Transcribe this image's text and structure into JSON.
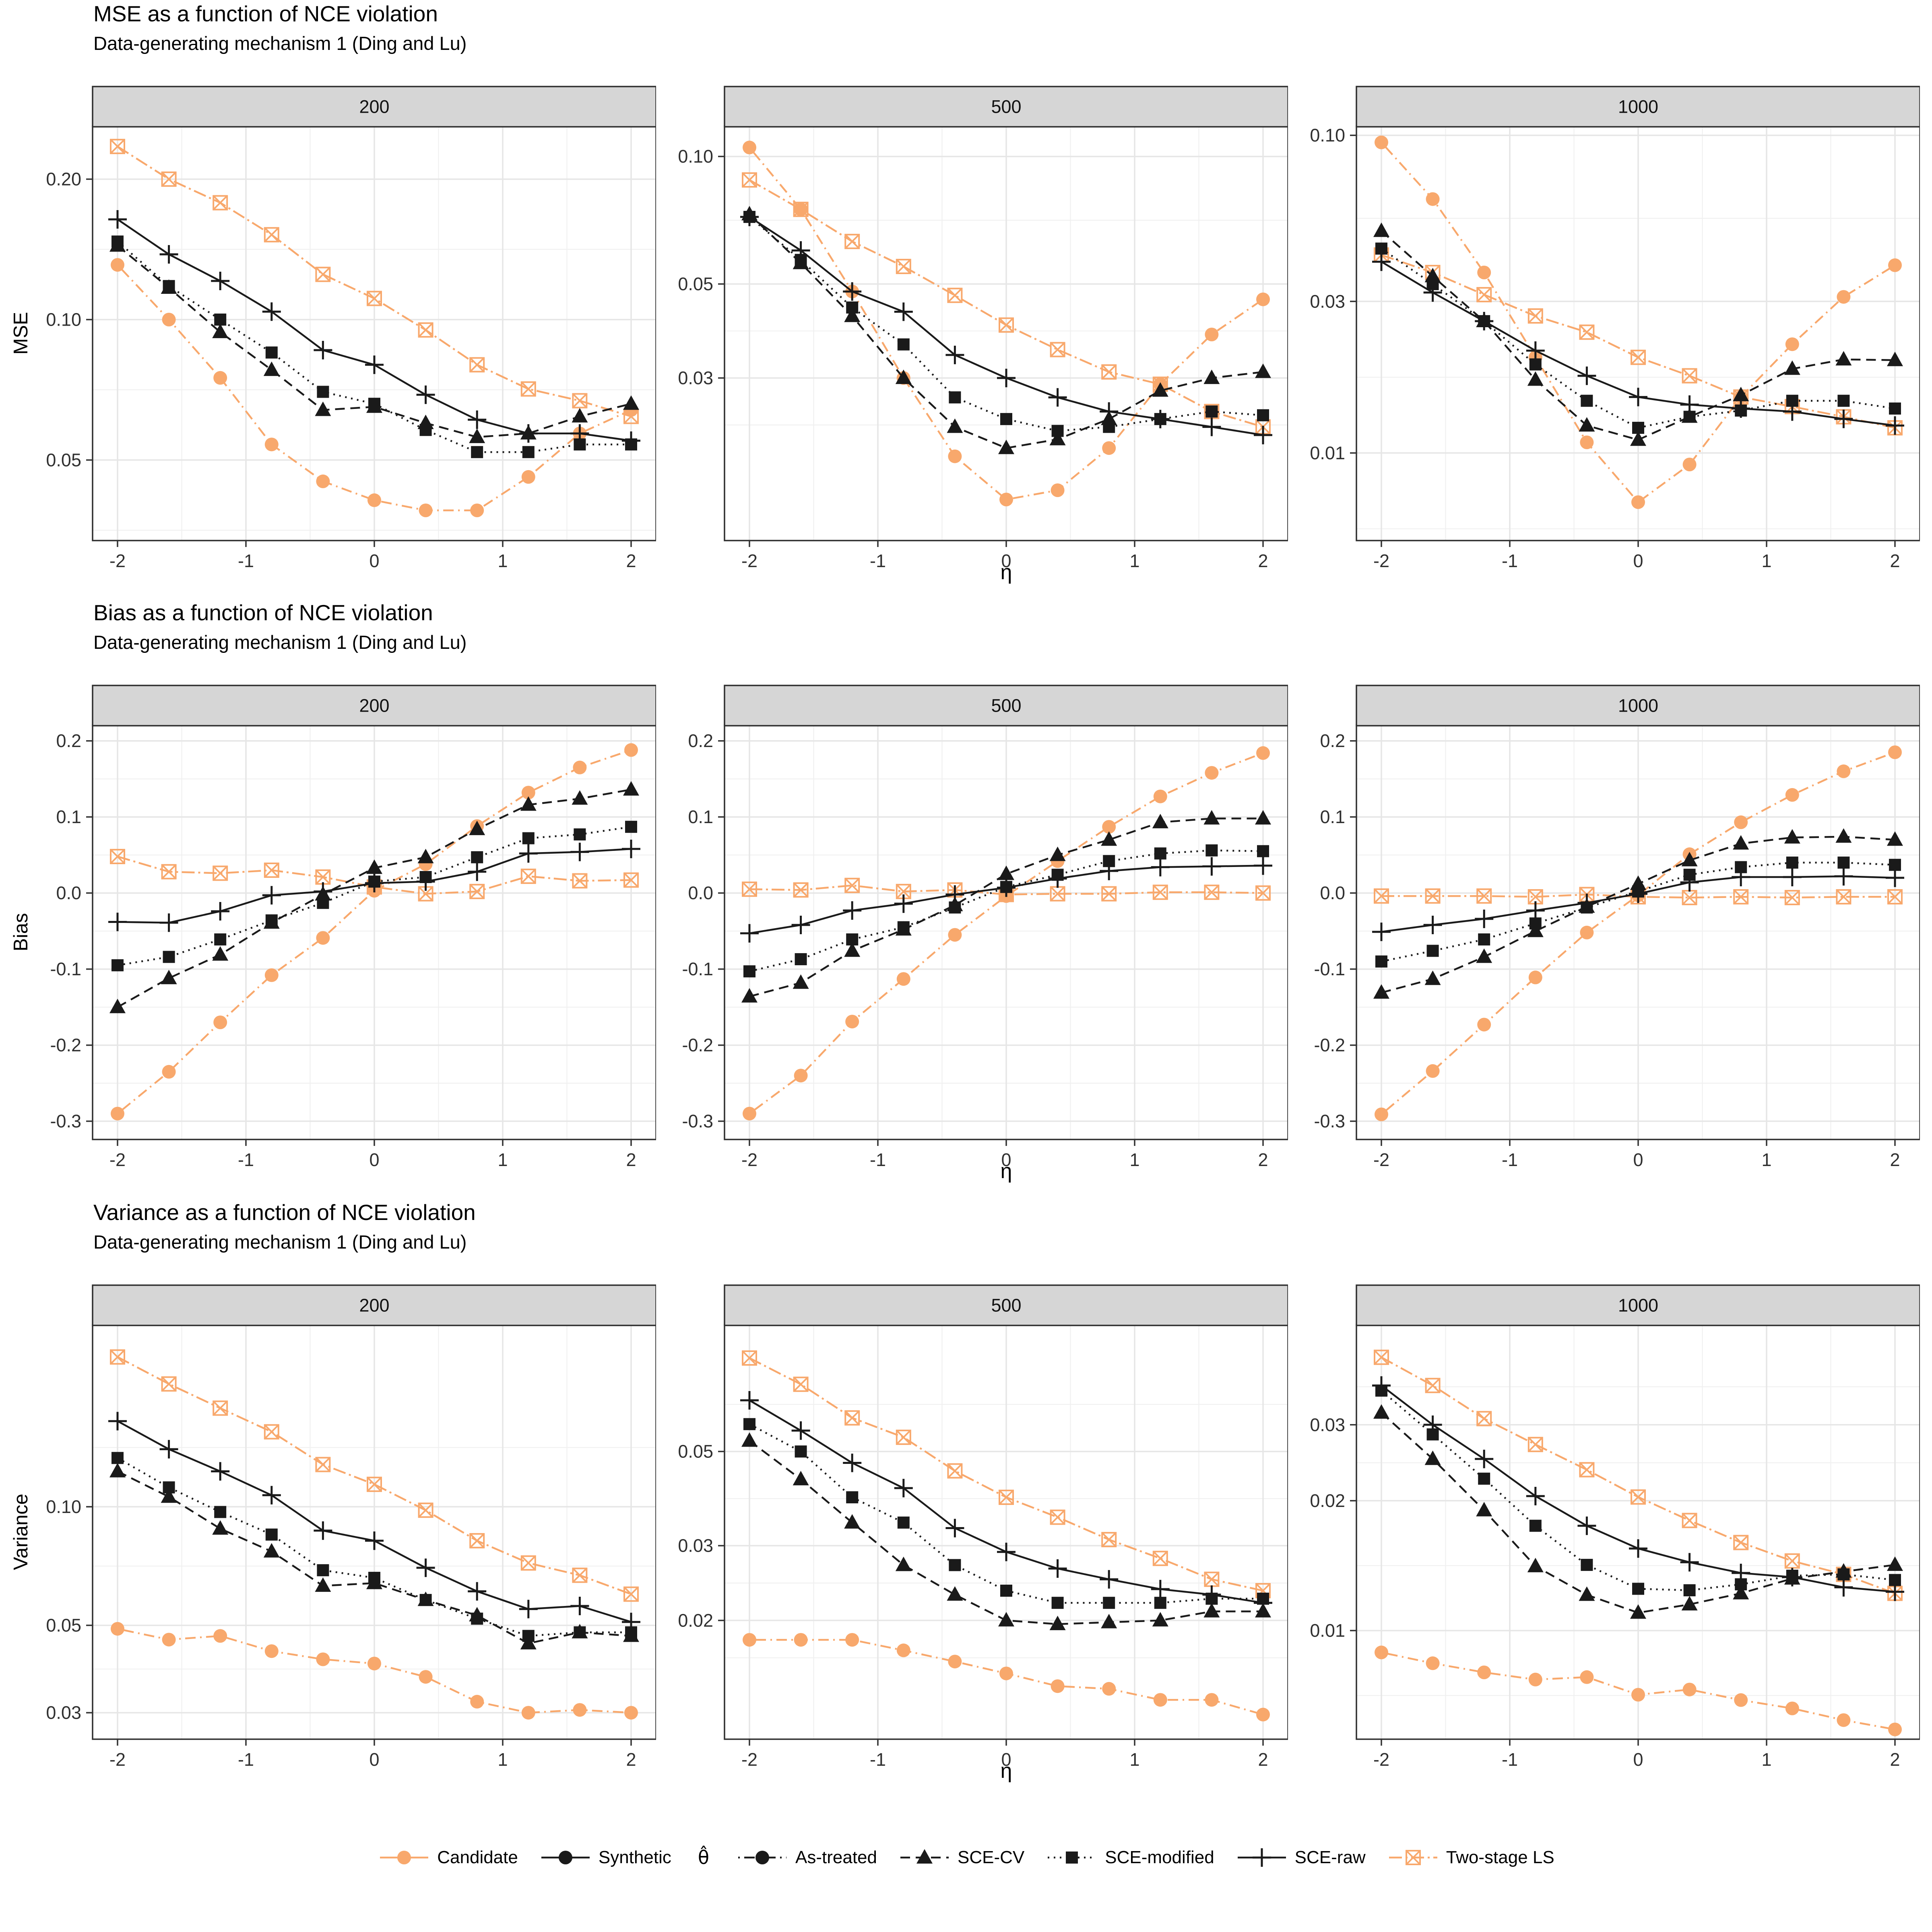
{
  "palette": {
    "orange": "#F8A86C",
    "black": "#1A1A1A",
    "grid_major": "#E6E6E6",
    "grid_minor": "#F0F0F0",
    "strip": "#D6D6D6",
    "border": "#2F2F2F",
    "tick": "#333333",
    "text": "#303030"
  },
  "x_values": [
    -2,
    -1.6,
    -1.2,
    -0.8,
    -0.4,
    0,
    0.4,
    0.8,
    1.2,
    1.6,
    2
  ],
  "x_major_ticks": [
    -2,
    -1,
    0,
    1,
    2
  ],
  "x_ticks": [
    "-2",
    "-1",
    "0",
    "1",
    "2"
  ],
  "x_minor_ticks": [
    -1.5,
    -0.5,
    0.5,
    1.5
  ],
  "panel_series_order": [
    "two_stage",
    "candidate",
    "sce_raw",
    "sce_cv",
    "sce_mod"
  ],
  "series_defs": [
    {
      "id": "candidate",
      "label": "Candidate",
      "color": "orange",
      "marker": "circle",
      "line": "dotdash"
    },
    {
      "id": "synthetic",
      "label": "Synthetic",
      "color": "black",
      "marker": "circle",
      "line": "solid"
    },
    {
      "id": "as_treated",
      "label": "As-treated",
      "color": "black",
      "marker": "circle",
      "line": "dotdash"
    },
    {
      "id": "sce_cv",
      "label": "SCE-CV",
      "color": "black",
      "marker": "triangle",
      "line": "dashed"
    },
    {
      "id": "sce_mod",
      "label": "SCE-modified",
      "color": "black",
      "marker": "square",
      "line": "dotted"
    },
    {
      "id": "sce_raw",
      "label": "SCE-raw",
      "color": "black",
      "marker": "plus",
      "line": "solid"
    },
    {
      "id": "two_stage",
      "label": "Two-stage LS",
      "color": "orange",
      "marker": "square_x",
      "line": "twodash"
    }
  ],
  "legend": {
    "title": "θ̂",
    "items": [
      {
        "id": "candidate",
        "label": "Candidate",
        "color": "orange",
        "marker": "circle",
        "line": "solid"
      },
      {
        "id": "synthetic",
        "label": "Synthetic",
        "color": "black",
        "marker": "circle",
        "line": "solid"
      },
      {
        "id": "theta",
        "type": "title"
      },
      {
        "id": "as_treated",
        "label": "As-treated",
        "color": "black",
        "marker": "circle",
        "line": "dotdash"
      },
      {
        "id": "sce_cv",
        "label": "SCE-CV",
        "color": "black",
        "marker": "triangle",
        "line": "dashed"
      },
      {
        "id": "sce_mod",
        "label": "SCE-modified",
        "color": "black",
        "marker": "square",
        "line": "dotted"
      },
      {
        "id": "sce_raw",
        "label": "SCE-raw",
        "color": "black",
        "marker": "plus",
        "line": "solid"
      },
      {
        "id": "two_stage",
        "label": "Two-stage LS",
        "color": "orange",
        "marker": "square_x",
        "line": "twodash"
      }
    ]
  },
  "chart_data": [
    {
      "type": "line",
      "metric": "MSE",
      "title": "MSE as a function of NCE violation",
      "subtitle": "Data-generating mechanism 1 (Ding and Lu)",
      "ylabel": "MSE",
      "xlabel": "η",
      "facets": [
        {
          "label": "200",
          "y_scale": "log",
          "y_domain": [
            0.0336,
            0.26
          ],
          "y_ticks": [
            0.05,
            0.1,
            0.2
          ],
          "y_tick_labels": [
            "0.05",
            "0.10",
            "0.20"
          ],
          "series": {
            "candidate": [
              0.131,
              0.1,
              0.075,
              0.054,
              0.045,
              0.041,
              0.039,
              0.039,
              0.046,
              0.057,
              0.064
            ],
            "two_stage": [
              0.235,
              0.2,
              0.178,
              0.152,
              0.125,
              0.111,
              0.095,
              0.08,
              0.071,
              0.067,
              0.062
            ],
            "sce_raw": [
              0.164,
              0.138,
              0.121,
              0.104,
              0.086,
              0.08,
              0.069,
              0.061,
              0.057,
              0.057,
              0.055
            ],
            "sce_cv": [
              0.144,
              0.117,
              0.094,
              0.078,
              0.064,
              0.065,
              0.06,
              0.056,
              0.057,
              0.062,
              0.066
            ],
            "sce_mod": [
              0.147,
              0.118,
              0.1,
              0.085,
              0.07,
              0.066,
              0.058,
              0.052,
              0.052,
              0.054,
              0.054
            ]
          }
        },
        {
          "label": "500",
          "y_scale": "log",
          "y_domain": [
            0.0124,
            0.118
          ],
          "y_ticks": [
            0.03,
            0.05,
            0.1
          ],
          "y_tick_labels": [
            "0.03",
            "0.05",
            "0.10"
          ],
          "series": {
            "candidate": [
              0.105,
              0.075,
              0.048,
              0.03,
              0.0196,
              0.0155,
              0.0163,
              0.0205,
              0.029,
              0.038,
              0.046
            ],
            "two_stage": [
              0.088,
              0.075,
              0.063,
              0.055,
              0.047,
              0.04,
              0.035,
              0.031,
              0.029,
              0.025,
              0.023
            ],
            "sce_raw": [
              0.072,
              0.06,
              0.048,
              0.043,
              0.034,
              0.03,
              0.027,
              0.025,
              0.024,
              0.023,
              0.022
            ],
            "sce_cv": [
              0.073,
              0.056,
              0.042,
              0.03,
              0.023,
              0.0205,
              0.0215,
              0.024,
              0.028,
              0.03,
              0.031
            ],
            "sce_mod": [
              0.072,
              0.057,
              0.044,
              0.036,
              0.027,
              0.024,
              0.0225,
              0.023,
              0.024,
              0.025,
              0.0245
            ]
          }
        },
        {
          "label": "1000",
          "y_scale": "log",
          "y_domain": [
            0.0053,
            0.107
          ],
          "y_ticks": [
            0.01,
            0.03,
            0.1
          ],
          "y_tick_labels": [
            "0.01",
            "0.03",
            "0.10"
          ],
          "series": {
            "candidate": [
              0.095,
              0.063,
              0.037,
              0.02,
              0.0108,
              0.007,
              0.0092,
              0.015,
              0.022,
              0.031,
              0.039
            ],
            "two_stage": [
              0.042,
              0.037,
              0.0315,
              0.027,
              0.024,
              0.02,
              0.0175,
              0.015,
              0.014,
              0.013,
              0.012
            ],
            "sce_raw": [
              0.04,
              0.032,
              0.026,
              0.021,
              0.0175,
              0.015,
              0.0142,
              0.0138,
              0.0135,
              0.0128,
              0.0122
            ],
            "sce_cv": [
              0.05,
              0.036,
              0.026,
              0.017,
              0.0122,
              0.011,
              0.013,
              0.0152,
              0.0184,
              0.0197,
              0.0196
            ],
            "sce_mod": [
              0.044,
              0.034,
              0.026,
              0.019,
              0.0146,
              0.012,
              0.013,
              0.0136,
              0.0146,
              0.0146,
              0.0138
            ]
          }
        }
      ]
    },
    {
      "type": "line",
      "metric": "Bias",
      "title": "Bias as a function of NCE violation",
      "subtitle": "Data-generating mechanism 1 (Ding and Lu)",
      "ylabel": "Bias",
      "xlabel": "η",
      "facets": [
        {
          "label": "200",
          "y_scale": "linear",
          "y_domain": [
            -0.324,
            0.221
          ],
          "y_ticks": [
            -0.3,
            -0.2,
            -0.1,
            0.0,
            0.1,
            0.2
          ],
          "y_tick_labels": [
            "-0.3",
            "-0.2",
            "-0.1",
            "0.0",
            "0.1",
            "0.2"
          ],
          "series": {
            "candidate": [
              -0.29,
              -0.235,
              -0.17,
              -0.108,
              -0.059,
              0.003,
              0.038,
              0.088,
              0.132,
              0.165,
              0.188
            ],
            "two_stage": [
              0.048,
              0.028,
              0.026,
              0.03,
              0.021,
              0.008,
              -0.001,
              0.002,
              0.022,
              0.016,
              0.017
            ],
            "sce_raw": [
              -0.038,
              -0.039,
              -0.024,
              -0.003,
              0.002,
              0.013,
              0.015,
              0.028,
              0.052,
              0.054,
              0.058
            ],
            "sce_cv": [
              -0.15,
              -0.112,
              -0.081,
              -0.039,
              -0.002,
              0.033,
              0.047,
              0.084,
              0.116,
              0.124,
              0.136
            ],
            "sce_mod": [
              -0.095,
              -0.084,
              -0.061,
              -0.036,
              -0.013,
              0.015,
              0.021,
              0.047,
              0.072,
              0.077,
              0.087
            ]
          }
        },
        {
          "label": "500",
          "y_scale": "linear",
          "y_domain": [
            -0.324,
            0.221
          ],
          "y_ticks": [
            -0.3,
            -0.2,
            -0.1,
            0.0,
            0.1,
            0.2
          ],
          "y_tick_labels": [
            "-0.3",
            "-0.2",
            "-0.1",
            "0.0",
            "0.1",
            "0.2"
          ],
          "series": {
            "candidate": [
              -0.29,
              -0.24,
              -0.169,
              -0.113,
              -0.055,
              -0.004,
              0.042,
              0.087,
              0.127,
              0.158,
              0.184
            ],
            "two_stage": [
              0.005,
              0.004,
              0.01,
              0.002,
              0.004,
              -0.002,
              -0.001,
              -0.001,
              0.001,
              0.001,
              0.0
            ],
            "sce_raw": [
              -0.053,
              -0.042,
              -0.023,
              -0.014,
              -0.002,
              0.007,
              0.019,
              0.029,
              0.034,
              0.035,
              0.036
            ],
            "sce_cv": [
              -0.136,
              -0.118,
              -0.076,
              -0.048,
              -0.016,
              0.025,
              0.05,
              0.07,
              0.093,
              0.098,
              0.098
            ],
            "sce_mod": [
              -0.103,
              -0.087,
              -0.061,
              -0.045,
              -0.019,
              0.008,
              0.024,
              0.042,
              0.052,
              0.056,
              0.055
            ]
          }
        },
        {
          "label": "1000",
          "y_scale": "linear",
          "y_domain": [
            -0.324,
            0.221
          ],
          "y_ticks": [
            -0.3,
            -0.2,
            -0.1,
            0.0,
            0.1,
            0.2
          ],
          "y_tick_labels": [
            "-0.3",
            "-0.2",
            "-0.1",
            "0.0",
            "0.1",
            "0.2"
          ],
          "series": {
            "candidate": [
              -0.291,
              -0.234,
              -0.173,
              -0.111,
              -0.052,
              -0.003,
              0.051,
              0.093,
              0.129,
              0.16,
              0.185
            ],
            "two_stage": [
              -0.004,
              -0.004,
              -0.004,
              -0.005,
              -0.002,
              -0.005,
              -0.006,
              -0.005,
              -0.006,
              -0.005,
              -0.005
            ],
            "sce_raw": [
              -0.051,
              -0.042,
              -0.034,
              -0.023,
              -0.013,
              -0.001,
              0.014,
              0.021,
              0.021,
              0.022,
              0.02
            ],
            "sce_cv": [
              -0.131,
              -0.113,
              -0.084,
              -0.05,
              -0.018,
              0.012,
              0.043,
              0.065,
              0.073,
              0.074,
              0.07
            ],
            "sce_mod": [
              -0.09,
              -0.076,
              -0.061,
              -0.04,
              -0.019,
              0.002,
              0.024,
              0.034,
              0.04,
              0.04,
              0.037
            ]
          }
        }
      ]
    },
    {
      "type": "line",
      "metric": "Variance",
      "title": "Variance as a function of NCE violation",
      "subtitle": "Data-generating mechanism 1 (Ding and Lu)",
      "ylabel": "Variance",
      "xlabel": "η",
      "facets": [
        {
          "label": "200",
          "y_scale": "log",
          "y_domain": [
            0.0257,
            0.29
          ],
          "y_ticks": [
            0.03,
            0.05,
            0.1
          ],
          "y_tick_labels": [
            "0.03",
            "0.05",
            "0.10"
          ],
          "series": {
            "candidate": [
              0.049,
              0.046,
              0.047,
              0.043,
              0.041,
              0.04,
              0.037,
              0.032,
              0.03,
              0.0305,
              0.03
            ],
            "two_stage": [
              0.24,
              0.205,
              0.178,
              0.155,
              0.128,
              0.114,
              0.098,
              0.082,
              0.072,
              0.067,
              0.06
            ],
            "sce_raw": [
              0.165,
              0.14,
              0.123,
              0.107,
              0.087,
              0.082,
              0.07,
              0.061,
              0.055,
              0.056,
              0.051
            ],
            "sce_cv": [
              0.123,
              0.106,
              0.088,
              0.077,
              0.063,
              0.064,
              0.058,
              0.053,
              0.045,
              0.048,
              0.047
            ],
            "sce_mod": [
              0.133,
              0.112,
              0.097,
              0.085,
              0.069,
              0.066,
              0.058,
              0.052,
              0.047,
              0.048,
              0.048
            ]
          }
        },
        {
          "label": "500",
          "y_scale": "log",
          "y_domain": [
            0.0105,
            0.0995
          ],
          "y_ticks": [
            0.02,
            0.03,
            0.05
          ],
          "y_tick_labels": [
            "0.02",
            "0.03",
            "0.05"
          ],
          "series": {
            "candidate": [
              0.018,
              0.018,
              0.018,
              0.017,
              0.016,
              0.015,
              0.014,
              0.0138,
              0.013,
              0.013,
              0.012
            ],
            "two_stage": [
              0.083,
              0.072,
              0.06,
              0.054,
              0.045,
              0.039,
              0.035,
              0.031,
              0.028,
              0.025,
              0.0235
            ],
            "sce_raw": [
              0.066,
              0.056,
              0.047,
              0.041,
              0.033,
              0.029,
              0.0265,
              0.025,
              0.0237,
              0.023,
              0.022
            ],
            "sce_cv": [
              0.053,
              0.043,
              0.034,
              0.027,
              0.023,
              0.02,
              0.0196,
              0.0198,
              0.02,
              0.021,
              0.021
            ],
            "sce_mod": [
              0.058,
              0.05,
              0.039,
              0.034,
              0.027,
              0.0235,
              0.022,
              0.022,
              0.022,
              0.0225,
              0.0225
            ]
          }
        },
        {
          "label": "1000",
          "y_scale": "log",
          "y_domain": [
            0.0056,
            0.0512
          ],
          "y_ticks": [
            0.01,
            0.02,
            0.03
          ],
          "y_tick_labels": [
            "0.01",
            "0.02",
            "0.03"
          ],
          "series": {
            "candidate": [
              0.0089,
              0.0084,
              0.008,
              0.0077,
              0.0078,
              0.0071,
              0.0073,
              0.0069,
              0.0066,
              0.0062,
              0.0059
            ],
            "two_stage": [
              0.043,
              0.037,
              0.031,
              0.027,
              0.0236,
              0.0204,
              0.018,
              0.016,
              0.0145,
              0.0135,
              0.0122
            ],
            "sce_raw": [
              0.037,
              0.03,
              0.025,
              0.0205,
              0.0175,
              0.0155,
              0.0144,
              0.0136,
              0.0133,
              0.0126,
              0.0123
            ],
            "sce_cv": [
              0.032,
              0.025,
              0.019,
              0.0141,
              0.0121,
              0.011,
              0.0115,
              0.0122,
              0.0132,
              0.0137,
              0.0142
            ],
            "sce_mod": [
              0.036,
              0.0285,
              0.0225,
              0.0175,
              0.0142,
              0.0125,
              0.0124,
              0.0128,
              0.0134,
              0.0135,
              0.0131
            ]
          }
        }
      ]
    }
  ]
}
